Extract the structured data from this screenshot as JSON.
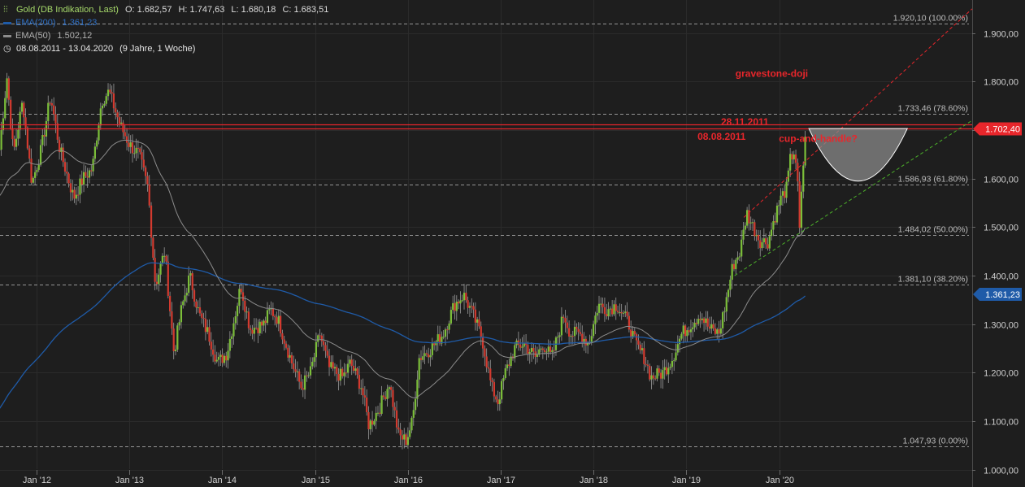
{
  "legend": {
    "title": "Gold (DB Indikation, Last)",
    "ohlc": [
      {
        "label": "O:",
        "value": "1.682,57"
      },
      {
        "label": "H:",
        "value": "1.747,63"
      },
      {
        "label": "L:",
        "value": "1.680,18"
      },
      {
        "label": "C:",
        "value": "1.683,51"
      }
    ],
    "ema200": {
      "label": "EMA(200)",
      "value": "1.361,23",
      "color": "#1f5ba8"
    },
    "ema50": {
      "label": "EMA(50)",
      "value": "1.502,12",
      "color": "#8c8c8c"
    },
    "range": "08.08.2011 - 13.04.2020",
    "duration": "(9 Jahre, 1 Woche)"
  },
  "chart_data": {
    "type": "candlestick",
    "x_range": [
      "2011-08-08",
      "2020-04-13"
    ],
    "ylim": [
      975,
      1950
    ],
    "y_ticks": [
      "1.000,00",
      "1.100,00",
      "1.200,00",
      "1.300,00",
      "1.400,00",
      "1.500,00",
      "1.600,00",
      "1.700,00",
      "1.800,00",
      "1.900,00"
    ],
    "y_tick_values": [
      1000,
      1100,
      1200,
      1300,
      1400,
      1500,
      1600,
      1700,
      1800,
      1900
    ],
    "x_ticks": [
      {
        "label": "Jan '12",
        "date": 2012.0
      },
      {
        "label": "Jan '13",
        "date": 2013.0
      },
      {
        "label": "Jan '14",
        "date": 2014.0
      },
      {
        "label": "Jan '15",
        "date": 2015.0
      },
      {
        "label": "Jan '16",
        "date": 2016.0
      },
      {
        "label": "Jan '17",
        "date": 2017.0
      },
      {
        "label": "Jan '18",
        "date": 2018.0
      },
      {
        "label": "Jan '19",
        "date": 2019.0
      },
      {
        "label": "Jan '20",
        "date": 2020.0
      }
    ],
    "fib_levels": [
      {
        "label": "1.920,10 (100.00%)",
        "value": 1920.1
      },
      {
        "label": "1.733,46 (78.60%)",
        "value": 1733.46
      },
      {
        "label": "1.586,93 (61.80%)",
        "value": 1586.93
      },
      {
        "label": "1.484,02 (50.00%)",
        "value": 1484.02
      },
      {
        "label": "1.381,10 (38.20%)",
        "value": 1381.1
      },
      {
        "label": "1.047,93 (0.00%)",
        "value": 1047.93
      }
    ],
    "price_markers": [
      {
        "label": "1.702,40",
        "value": 1702.4,
        "color": "#e8262b"
      },
      {
        "label": "1.361,23",
        "value": 1361.23,
        "color": "#1f5ba8"
      }
    ],
    "annotations": [
      {
        "text": "gravestone-doji",
        "date": 2019.92,
        "price": 1810
      },
      {
        "text": "28.11.2011",
        "date": 2019.63,
        "price": 1710
      },
      {
        "text": "08.08.2011",
        "date": 2019.38,
        "price": 1680
      },
      {
        "text": "cup-and-handle?",
        "date": 2020.42,
        "price": 1676
      }
    ],
    "resistance_lines": [
      1712,
      1703
    ],
    "price_path": [
      [
        2011.6,
        1660
      ],
      [
        2011.68,
        1810
      ],
      [
        2011.75,
        1650
      ],
      [
        2011.85,
        1760
      ],
      [
        2011.95,
        1590
      ],
      [
        2012.05,
        1660
      ],
      [
        2012.15,
        1770
      ],
      [
        2012.25,
        1660
      ],
      [
        2012.4,
        1560
      ],
      [
        2012.5,
        1600
      ],
      [
        2012.6,
        1620
      ],
      [
        2012.7,
        1760
      ],
      [
        2012.78,
        1780
      ],
      [
        2012.9,
        1710
      ],
      [
        2013.0,
        1670
      ],
      [
        2013.1,
        1650
      ],
      [
        2013.2,
        1580
      ],
      [
        2013.28,
        1380
      ],
      [
        2013.38,
        1450
      ],
      [
        2013.48,
        1240
      ],
      [
        2013.56,
        1330
      ],
      [
        2013.65,
        1400
      ],
      [
        2013.75,
        1320
      ],
      [
        2013.85,
        1280
      ],
      [
        2013.95,
        1220
      ],
      [
        2014.05,
        1240
      ],
      [
        2014.15,
        1330
      ],
      [
        2014.2,
        1380
      ],
      [
        2014.3,
        1290
      ],
      [
        2014.45,
        1300
      ],
      [
        2014.52,
        1330
      ],
      [
        2014.6,
        1310
      ],
      [
        2014.75,
        1220
      ],
      [
        2014.85,
        1170
      ],
      [
        2014.95,
        1200
      ],
      [
        2015.05,
        1280
      ],
      [
        2015.15,
        1210
      ],
      [
        2015.3,
        1190
      ],
      [
        2015.38,
        1220
      ],
      [
        2015.5,
        1170
      ],
      [
        2015.58,
        1090
      ],
      [
        2015.7,
        1130
      ],
      [
        2015.8,
        1180
      ],
      [
        2015.9,
        1070
      ],
      [
        2015.98,
        1060
      ],
      [
        2016.05,
        1100
      ],
      [
        2016.12,
        1230
      ],
      [
        2016.25,
        1250
      ],
      [
        2016.38,
        1280
      ],
      [
        2016.5,
        1340
      ],
      [
        2016.6,
        1360
      ],
      [
        2016.7,
        1320
      ],
      [
        2016.8,
        1270
      ],
      [
        2016.9,
        1170
      ],
      [
        2016.97,
        1140
      ],
      [
        2017.05,
        1200
      ],
      [
        2017.15,
        1250
      ],
      [
        2017.25,
        1260
      ],
      [
        2017.38,
        1230
      ],
      [
        2017.45,
        1260
      ],
      [
        2017.55,
        1230
      ],
      [
        2017.68,
        1320
      ],
      [
        2017.75,
        1280
      ],
      [
        2017.85,
        1280
      ],
      [
        2017.95,
        1260
      ],
      [
        2018.05,
        1340
      ],
      [
        2018.15,
        1330
      ],
      [
        2018.25,
        1340
      ],
      [
        2018.38,
        1300
      ],
      [
        2018.45,
        1260
      ],
      [
        2018.55,
        1230
      ],
      [
        2018.62,
        1190
      ],
      [
        2018.75,
        1200
      ],
      [
        2018.85,
        1230
      ],
      [
        2018.95,
        1280
      ],
      [
        2019.05,
        1300
      ],
      [
        2019.15,
        1320
      ],
      [
        2019.25,
        1290
      ],
      [
        2019.35,
        1280
      ],
      [
        2019.42,
        1340
      ],
      [
        2019.5,
        1420
      ],
      [
        2019.58,
        1450
      ],
      [
        2019.65,
        1530
      ],
      [
        2019.72,
        1500
      ],
      [
        2019.8,
        1470
      ],
      [
        2019.88,
        1470
      ],
      [
        2019.95,
        1520
      ],
      [
        2020.02,
        1560
      ],
      [
        2020.08,
        1580
      ],
      [
        2020.12,
        1640
      ],
      [
        2020.17,
        1660
      ],
      [
        2020.2,
        1580
      ],
      [
        2020.22,
        1490
      ],
      [
        2020.25,
        1600
      ],
      [
        2020.28,
        1690
      ]
    ]
  }
}
